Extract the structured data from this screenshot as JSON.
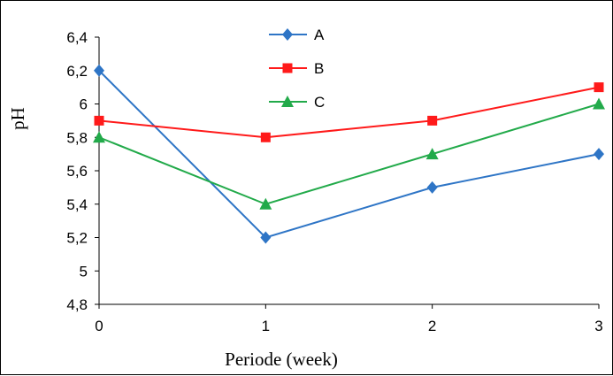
{
  "chart_data": {
    "type": "line",
    "xlabel": "Periode (week)",
    "ylabel": "pH",
    "x": [
      0,
      1,
      2,
      3
    ],
    "x_tick_labels": [
      "0",
      "1",
      "2",
      "3"
    ],
    "ylim": [
      4.8,
      6.4
    ],
    "y_ticks": [
      4.8,
      5.0,
      5.2,
      5.4,
      5.6,
      5.8,
      6.0,
      6.2,
      6.4
    ],
    "y_tick_labels": [
      "4,8",
      "5",
      "5,2",
      "5,4",
      "5,6",
      "5,8",
      "6",
      "6,2",
      "6,4"
    ],
    "grid": false,
    "legend": "top-center",
    "series": [
      {
        "name": "A",
        "values": [
          6.2,
          5.2,
          5.5,
          5.7
        ],
        "color": "#2e75c6",
        "marker": "diamond"
      },
      {
        "name": "B",
        "values": [
          5.9,
          5.8,
          5.9,
          6.1
        ],
        "color": "#ff1a1a",
        "marker": "square"
      },
      {
        "name": "C",
        "values": [
          5.8,
          5.4,
          5.7,
          6.0
        ],
        "color": "#22aa4a",
        "marker": "triangle"
      }
    ]
  }
}
